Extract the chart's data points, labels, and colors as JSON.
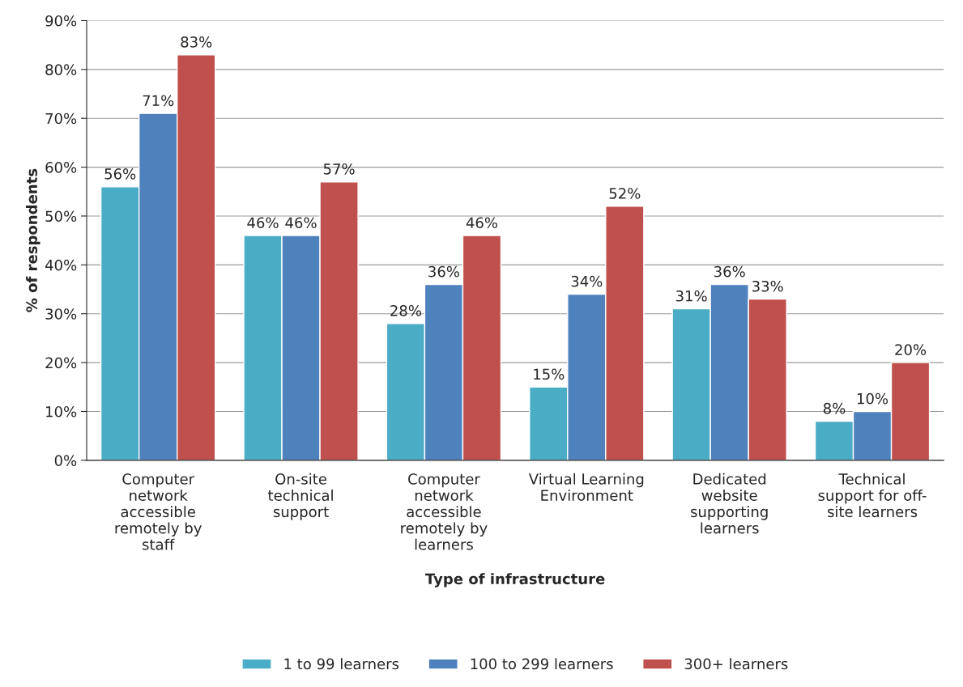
{
  "chart_data": {
    "type": "bar",
    "xlabel": "Type of infrastructure",
    "ylabel": "% of respondents",
    "categories": [
      "Computer\nnetwork\naccessible\nremotely by\nstaff",
      "On-site\ntechnical\nsupport",
      "Computer\nnetwork\naccessible\nremotely by\nlearners",
      "Virtual Learning\nEnvironment",
      "Dedicated\nwebsite\nsupporting\nlearners",
      "Technical\nsupport for off-\nsite learners"
    ],
    "series": [
      {
        "name": "1 to 99 learners",
        "color": "#4bacc6",
        "values": [
          56,
          46,
          28,
          15,
          31,
          8
        ],
        "value_labels": [
          "56%",
          "46%",
          "28%",
          "15%",
          "31%",
          "8%"
        ]
      },
      {
        "name": "100 to 299 learners",
        "color": "#4f81bd",
        "values": [
          71,
          46,
          36,
          34,
          36,
          10
        ],
        "value_labels": [
          "71%",
          "46%",
          "36%",
          "34%",
          "36%",
          "10%"
        ]
      },
      {
        "name": "300+ learners",
        "color": "#c0504d",
        "values": [
          83,
          57,
          46,
          52,
          33,
          20
        ],
        "value_labels": [
          "83%",
          "57%",
          "46%",
          "52%",
          "33%",
          "20%"
        ]
      }
    ],
    "ylim": [
      0,
      90
    ],
    "yticks": [
      {
        "value": 0,
        "label": "0%"
      },
      {
        "value": 10,
        "label": "10%"
      },
      {
        "value": 20,
        "label": "20%"
      },
      {
        "value": 30,
        "label": "30%"
      },
      {
        "value": 40,
        "label": "40%"
      },
      {
        "value": 50,
        "label": "50%"
      },
      {
        "value": 60,
        "label": "60%"
      },
      {
        "value": 70,
        "label": "70%"
      },
      {
        "value": 80,
        "label": "80%"
      },
      {
        "value": 90,
        "label": "90%"
      }
    ],
    "grid": "y",
    "legend": "bottom"
  }
}
